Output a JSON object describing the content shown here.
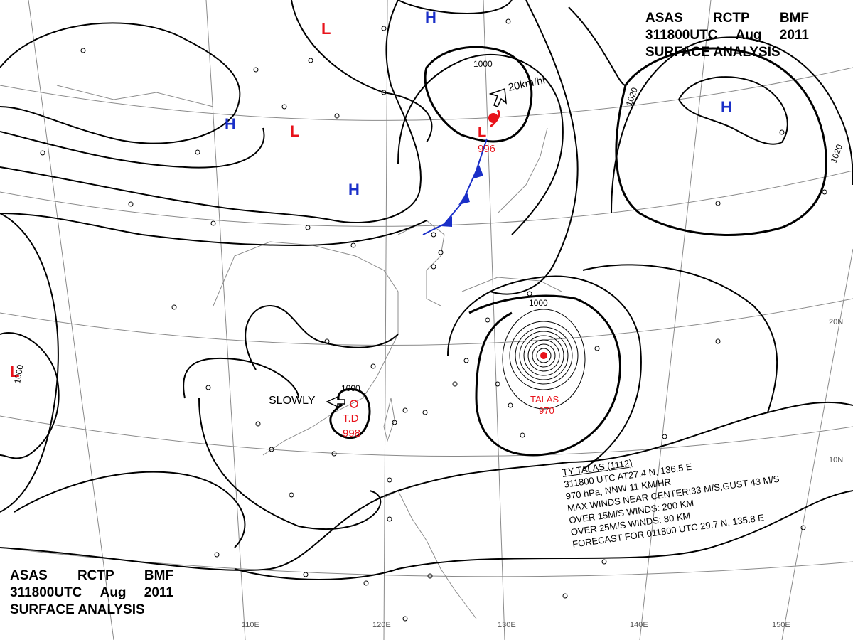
{
  "title": {
    "line1": [
      "ASAS",
      "RCTP",
      "BMF"
    ],
    "line2": [
      "311800UTC",
      "Aug",
      "2011"
    ],
    "line3": "SURFACE ANALYSIS"
  },
  "longitude_labels": [
    "110E",
    "120E",
    "130E",
    "140E",
    "150E"
  ],
  "latitude_labels": [
    "20N",
    "10N"
  ],
  "pressure_centers": [
    {
      "type": "L",
      "name": "low-icon"
    },
    {
      "type": "H",
      "name": "high-icon"
    }
  ],
  "isobar_labels": [
    "1000",
    "1020"
  ],
  "low_pressure_ne": {
    "letter": "L",
    "pressure": "996",
    "motion": "20km/hr"
  },
  "tropical_depression": {
    "label": "T.D",
    "pressure": "998",
    "motion": "SLOWLY"
  },
  "typhoon": {
    "name": "TALAS",
    "pressure": "970"
  },
  "typhoon_info": [
    "TY TALAS (1112)",
    "311800 UTC  AT27.4 N, 136.5 E",
    "970 hPa, NNW  11 KM/HR",
    "MAX WINDS NEAR CENTER:33 M/S,GUST 43 M/S",
    "OVER 15M/S WINDS: 200 KM",
    "OVER 25M/S WINDS: 80 KM",
    "FORECAST FOR 011800 UTC 29.7 N, 135.8 E"
  ],
  "colors": {
    "low": "#e8131b",
    "high": "#1a2fc8",
    "front": "#1a2fc8",
    "isobar": "#000000",
    "grid": "#777777"
  }
}
